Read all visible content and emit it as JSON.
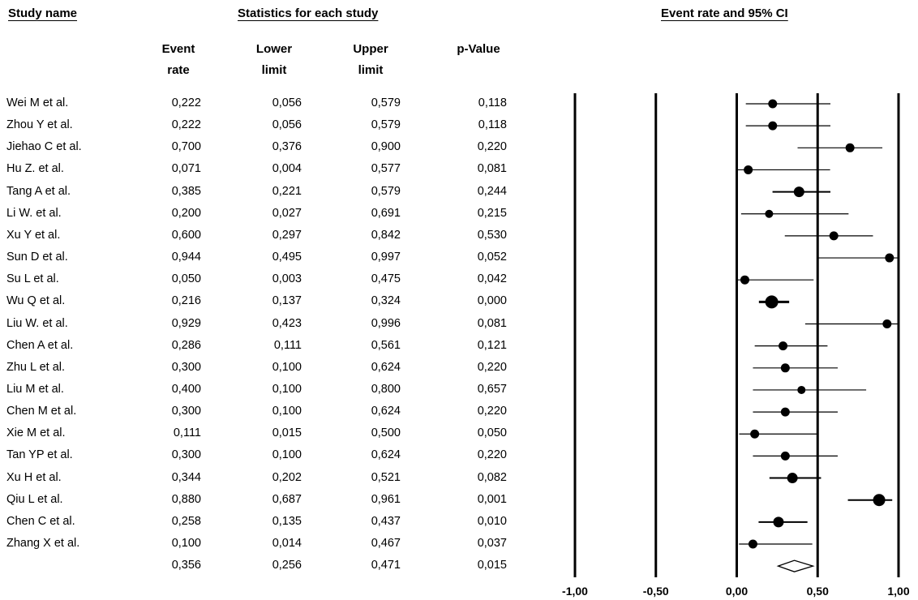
{
  "headers": {
    "study_name": "Study name",
    "statistics": "Statistics for each study",
    "plot_title": "Event rate and 95% CI"
  },
  "columns": [
    {
      "line1": "Event",
      "line2": "rate"
    },
    {
      "line1": "Lower",
      "line2": "limit"
    },
    {
      "line1": "Upper",
      "line2": "limit"
    },
    {
      "line1": "",
      "line2": "p-Value"
    }
  ],
  "chart_data": {
    "type": "forest",
    "title": "Event rate and 95% CI",
    "xlim": [
      -1.0,
      1.0
    ],
    "xticks": [
      -1.0,
      -0.5,
      0.0,
      0.5,
      1.0
    ],
    "xtick_labels": [
      "-1,00",
      "-0,50",
      "0,00",
      "0,50",
      "1,00"
    ],
    "rows": [
      {
        "study": "Wei M et al.",
        "rate": 0.222,
        "lower": 0.056,
        "upper": 0.579,
        "p": 0.118,
        "rate_s": "0,222",
        "lower_s": "0,056",
        "upper_s": "0,579",
        "p_s": "0,118"
      },
      {
        "study": "Zhou Y et al.",
        "rate": 0.222,
        "lower": 0.056,
        "upper": 0.579,
        "p": 0.118,
        "rate_s": "0,222",
        "lower_s": "0,056",
        "upper_s": "0,579",
        "p_s": "0,118"
      },
      {
        "study": "Jiehao C et al.",
        "rate": 0.7,
        "lower": 0.376,
        "upper": 0.9,
        "p": 0.22,
        "rate_s": "0,700",
        "lower_s": "0,376",
        "upper_s": "0,900",
        "p_s": "0,220"
      },
      {
        "study": "Hu Z. et al.",
        "rate": 0.071,
        "lower": 0.004,
        "upper": 0.577,
        "p": 0.081,
        "rate_s": "0,071",
        "lower_s": "0,004",
        "upper_s": "0,577",
        "p_s": "0,081"
      },
      {
        "study": "Tang A et al.",
        "rate": 0.385,
        "lower": 0.221,
        "upper": 0.579,
        "p": 0.244,
        "rate_s": "0,385",
        "lower_s": "0,221",
        "upper_s": "0,579",
        "p_s": "0,244"
      },
      {
        "study": "Li W. et al.",
        "rate": 0.2,
        "lower": 0.027,
        "upper": 0.691,
        "p": 0.215,
        "rate_s": "0,200",
        "lower_s": "0,027",
        "upper_s": "0,691",
        "p_s": "0,215"
      },
      {
        "study": "Xu Y et al.",
        "rate": 0.6,
        "lower": 0.297,
        "upper": 0.842,
        "p": 0.53,
        "rate_s": "0,600",
        "lower_s": "0,297",
        "upper_s": "0,842",
        "p_s": "0,530"
      },
      {
        "study": "Sun D et al.",
        "rate": 0.944,
        "lower": 0.495,
        "upper": 0.997,
        "p": 0.052,
        "rate_s": "0,944",
        "lower_s": "0,495",
        "upper_s": "0,997",
        "p_s": "0,052"
      },
      {
        "study": "Su L et al.",
        "rate": 0.05,
        "lower": 0.003,
        "upper": 0.475,
        "p": 0.042,
        "rate_s": "0,050",
        "lower_s": "0,003",
        "upper_s": "0,475",
        "p_s": "0,042"
      },
      {
        "study": "Wu Q et al.",
        "rate": 0.216,
        "lower": 0.137,
        "upper": 0.324,
        "p": 0.0,
        "rate_s": "0,216",
        "lower_s": "0,137",
        "upper_s": "0,324",
        "p_s": "0,000"
      },
      {
        "study": "Liu W. et al.",
        "rate": 0.929,
        "lower": 0.423,
        "upper": 0.996,
        "p": 0.081,
        "rate_s": "0,929",
        "lower_s": "0,423",
        "upper_s": "0,996",
        "p_s": "0,081"
      },
      {
        "study": "Chen A et al.",
        "rate": 0.286,
        "lower": 0.111,
        "upper": 0.561,
        "p": 0.121,
        "rate_s": "0,286",
        "lower_s": "0,111",
        "upper_s": "0,561",
        "p_s": "0,121"
      },
      {
        "study": "Zhu L et al.",
        "rate": 0.3,
        "lower": 0.1,
        "upper": 0.624,
        "p": 0.22,
        "rate_s": "0,300",
        "lower_s": "0,100",
        "upper_s": "0,624",
        "p_s": "0,220"
      },
      {
        "study": "Liu M et al.",
        "rate": 0.4,
        "lower": 0.1,
        "upper": 0.8,
        "p": 0.657,
        "rate_s": "0,400",
        "lower_s": "0,100",
        "upper_s": "0,800",
        "p_s": "0,657"
      },
      {
        "study": "Chen M et al.",
        "rate": 0.3,
        "lower": 0.1,
        "upper": 0.624,
        "p": 0.22,
        "rate_s": "0,300",
        "lower_s": "0,100",
        "upper_s": "0,624",
        "p_s": "0,220"
      },
      {
        "study": "Xie M et al.",
        "rate": 0.111,
        "lower": 0.015,
        "upper": 0.5,
        "p": 0.05,
        "rate_s": "0,111",
        "lower_s": "0,015",
        "upper_s": "0,500",
        "p_s": "0,050"
      },
      {
        "study": "Tan YP et al.",
        "rate": 0.3,
        "lower": 0.1,
        "upper": 0.624,
        "p": 0.22,
        "rate_s": "0,300",
        "lower_s": "0,100",
        "upper_s": "0,624",
        "p_s": "0,220"
      },
      {
        "study": "Xu H et al.",
        "rate": 0.344,
        "lower": 0.202,
        "upper": 0.521,
        "p": 0.082,
        "rate_s": "0,344",
        "lower_s": "0,202",
        "upper_s": "0,521",
        "p_s": "0,082"
      },
      {
        "study": "Qiu L et al.",
        "rate": 0.88,
        "lower": 0.687,
        "upper": 0.961,
        "p": 0.001,
        "rate_s": "0,880",
        "lower_s": "0,687",
        "upper_s": "0,961",
        "p_s": "0,001"
      },
      {
        "study": "Chen C et al.",
        "rate": 0.258,
        "lower": 0.135,
        "upper": 0.437,
        "p": 0.01,
        "rate_s": "0,258",
        "lower_s": "0,135",
        "upper_s": "0,437",
        "p_s": "0,010"
      },
      {
        "study": "Zhang X et al.",
        "rate": 0.1,
        "lower": 0.014,
        "upper": 0.467,
        "p": 0.037,
        "rate_s": "0,100",
        "lower_s": "0,014",
        "upper_s": "0,467",
        "p_s": "0,037"
      }
    ],
    "summary": {
      "rate": 0.356,
      "lower": 0.256,
      "upper": 0.471,
      "p": 0.015,
      "rate_s": "0,356",
      "lower_s": "0,256",
      "upper_s": "0,471",
      "p_s": "0,015"
    }
  }
}
